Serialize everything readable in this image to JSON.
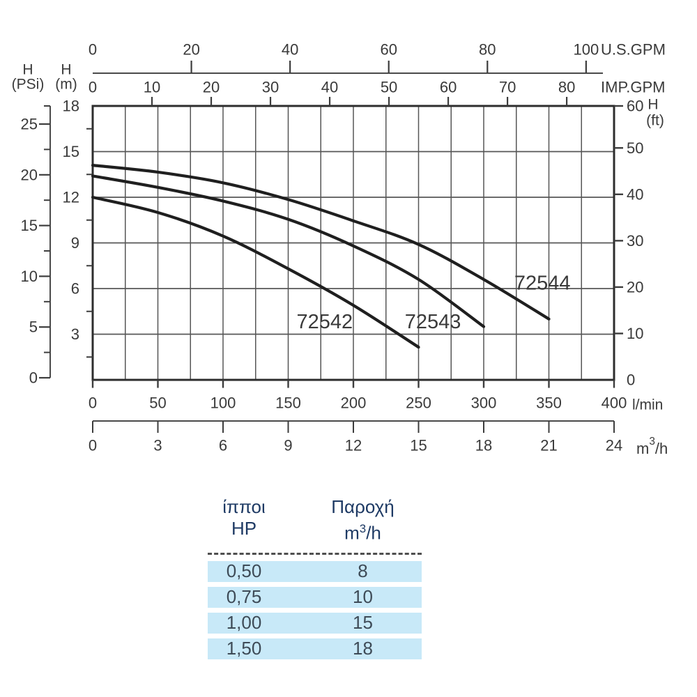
{
  "colors": {
    "curve": "#1f1f1f",
    "grid": "#565656",
    "plot_border": "#2d2d2d",
    "axis_line": "#4a4a4a",
    "tick": "#3d3d3d",
    "label_text": "#3a3a3a",
    "series_label_text": "#333333",
    "table_header_text": "#1e3a64",
    "table_row_bg": "#c8e9f8",
    "table_row_text": "#3e4b57",
    "table_divider": "#4f4f4f"
  },
  "chart_data": {
    "type": "line",
    "x_range_lmin": [
      0,
      400
    ],
    "y_range_m": [
      0,
      18
    ],
    "grid_step_x_lmin": 25,
    "grid_step_y_m": 3,
    "axes": {
      "us_gpm": {
        "label": "U.S.GPM",
        "ticks": [
          0,
          20,
          40,
          60,
          80,
          100
        ],
        "lmin_per_unit": 3.7854
      },
      "imp_gpm": {
        "label": "IMP.GPM",
        "ticks": [
          0,
          10,
          20,
          30,
          40,
          50,
          60,
          70,
          80
        ],
        "lmin_per_unit": 4.5461
      },
      "l_min": {
        "label": "l/min",
        "ticks": [
          0,
          50,
          100,
          150,
          200,
          250,
          300,
          350,
          400
        ]
      },
      "m3_h": {
        "label": "m³/h",
        "ticks": [
          0,
          3,
          6,
          9,
          12,
          15,
          18,
          21,
          24
        ],
        "lmin_per_unit": 16.6667
      },
      "h_psi": {
        "label": [
          "H",
          "(PSi)"
        ],
        "ticks": [
          0,
          5,
          10,
          15,
          20,
          25
        ],
        "minor_step": 2.5
      },
      "h_m": {
        "label": [
          "H",
          "(m)"
        ],
        "ticks": [
          3,
          6,
          9,
          12,
          15,
          18
        ],
        "minor_step": 1.5
      },
      "h_ft": {
        "label": [
          "H",
          "(ft)"
        ],
        "ticks": [
          0,
          10,
          20,
          30,
          40,
          50,
          60
        ],
        "m_per_unit": 0.3048
      }
    },
    "series": [
      {
        "name": "72542",
        "points_lmin_m": [
          [
            0,
            12.0
          ],
          [
            50,
            11.0
          ],
          [
            100,
            9.45
          ],
          [
            150,
            7.3
          ],
          [
            200,
            4.9
          ],
          [
            250,
            2.15
          ]
        ],
        "label_at_lmin_m": [
          178,
          3.8
        ]
      },
      {
        "name": "72543",
        "points_lmin_m": [
          [
            0,
            13.4
          ],
          [
            50,
            12.65
          ],
          [
            100,
            11.75
          ],
          [
            150,
            10.55
          ],
          [
            200,
            8.8
          ],
          [
            250,
            6.6
          ],
          [
            300,
            3.5
          ]
        ],
        "label_at_lmin_m": [
          261,
          3.8
        ]
      },
      {
        "name": "72544",
        "points_lmin_m": [
          [
            0,
            14.1
          ],
          [
            50,
            13.65
          ],
          [
            100,
            12.95
          ],
          [
            150,
            11.85
          ],
          [
            200,
            10.45
          ],
          [
            250,
            8.9
          ],
          [
            300,
            6.6
          ],
          [
            350,
            4.0
          ]
        ],
        "label_at_lmin_m": [
          345,
          6.35
        ]
      }
    ]
  },
  "table": {
    "headers": [
      [
        "ίπποι",
        "HP"
      ],
      [
        "Παροχή",
        "m³/h"
      ]
    ],
    "rows": [
      [
        "0,50",
        "8"
      ],
      [
        "0,75",
        "10"
      ],
      [
        "1,00",
        "15"
      ],
      [
        "1,50",
        "18"
      ]
    ]
  }
}
